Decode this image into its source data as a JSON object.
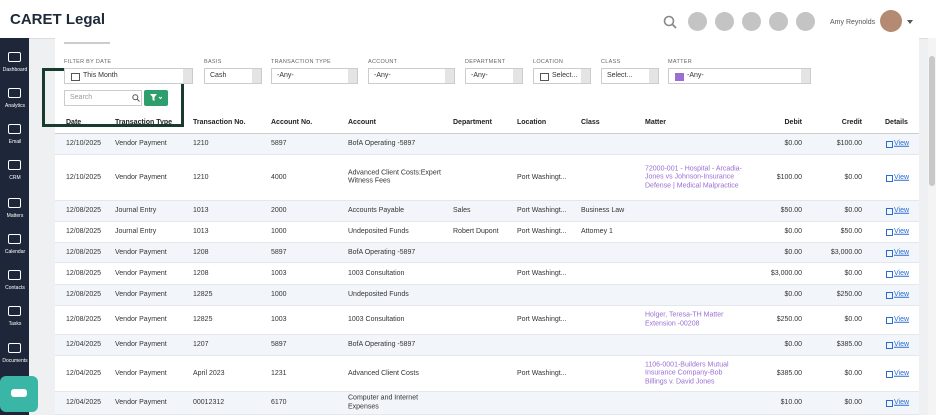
{
  "header": {
    "logo": "CARET Legal",
    "user": "Amy Reynolds"
  },
  "sidebar": [
    "Dashboard",
    "Analytics",
    "Email",
    "CRM",
    "Matters",
    "Calendar",
    "Contacts",
    "Tasks",
    "Documents"
  ],
  "filters": {
    "labels": [
      "FILTER BY DATE",
      "BASIS",
      "TRANSACTION TYPE",
      "ACCOUNT",
      "DEPARTMENT",
      "LOCATION",
      "CLASS",
      "MATTER"
    ],
    "values": [
      "This Month",
      "Cash",
      "-Any-",
      "-Any-",
      "-Any-",
      "Select...",
      "Select...",
      "-Any-"
    ],
    "search_placeholder": "Search"
  },
  "table": {
    "columns": [
      "Date",
      "Transaction Type",
      "Transaction No.",
      "Account No.",
      "Account",
      "Department",
      "Location",
      "Class",
      "Matter",
      "Debit",
      "Credit",
      "Details"
    ],
    "rows": [
      {
        "date": "12/10/2025",
        "type": "Vendor Payment",
        "number": "1210",
        "account_no": "5897",
        "account": "BofA Operating -5897",
        "debit": "$0.00",
        "credit": "$100.00",
        "details": "View"
      },
      {
        "date": "12/10/2025",
        "type": "Vendor Payment",
        "number": "1210",
        "account_no": "4000",
        "account": "Advanced Client Costs:Expert Witness Fees",
        "location": "Port Washingt...",
        "matter": "72000-001 - Hospital - Arcadia-Jones vs Johnson-Insurance Defense | Medical Malpractice",
        "debit": "$100.00",
        "credit": "$0.00",
        "details": "View"
      },
      {
        "date": "12/08/2025",
        "type": "Journal Entry",
        "number": "1013",
        "account_no": "2000",
        "account": "Accounts Payable",
        "department": "Sales",
        "location": "Port Washingt...",
        "class": "Business Law",
        "debit": "$50.00",
        "credit": "$0.00",
        "details": "View"
      },
      {
        "date": "12/08/2025",
        "type": "Journal Entry",
        "number": "1013",
        "account_no": "1000",
        "account": "Undeposited Funds",
        "department": "Robert Dupont",
        "location": "Port Washingt...",
        "class": "Attorney 1",
        "debit": "$0.00",
        "credit": "$50.00",
        "details": "View"
      },
      {
        "date": "12/08/2025",
        "type": "Vendor Payment",
        "number": "1208",
        "account_no": "5897",
        "account": "BofA Operating -5897",
        "debit": "$0.00",
        "credit": "$3,000.00",
        "details": "View"
      },
      {
        "date": "12/08/2025",
        "type": "Vendor Payment",
        "number": "1208",
        "account_no": "1003",
        "account": "1003 Consultation",
        "location": "Port Washingt...",
        "debit": "$3,000.00",
        "credit": "$0.00",
        "details": "View"
      },
      {
        "date": "12/08/2025",
        "type": "Vendor Payment",
        "number": "12825",
        "account_no": "1000",
        "account": "Undeposited Funds",
        "debit": "$0.00",
        "credit": "$250.00",
        "details": "View"
      },
      {
        "date": "12/08/2025",
        "type": "Vendor Payment",
        "number": "12825",
        "account_no": "1003",
        "account": "1003 Consultation",
        "location": "Port Washingt...",
        "matter": "Holger, Teresa-TH Matter Extension -00208",
        "debit": "$250.00",
        "credit": "$0.00",
        "details": "View"
      },
      {
        "date": "12/04/2025",
        "type": "Vendor Payment",
        "number": "1207",
        "account_no": "5897",
        "account": "BofA Operating -5897",
        "debit": "$0.00",
        "credit": "$385.00",
        "details": "View"
      },
      {
        "date": "12/04/2025",
        "type": "Vendor Payment",
        "number": "April 2023",
        "account_no": "1231",
        "account": "Advanced Client Costs",
        "location": "Port Washingt...",
        "matter": "1106-0001-Builders Mutual Insurance Company-Bob Billings v. David Jones",
        "debit": "$385.00",
        "credit": "$0.00",
        "details": "View"
      },
      {
        "date": "12/04/2025",
        "type": "Vendor Payment",
        "number": "00012312",
        "account_no": "6170",
        "account": "Computer and Internet Expenses",
        "debit": "$10.00",
        "credit": "$0.00",
        "details": "View"
      }
    ]
  }
}
